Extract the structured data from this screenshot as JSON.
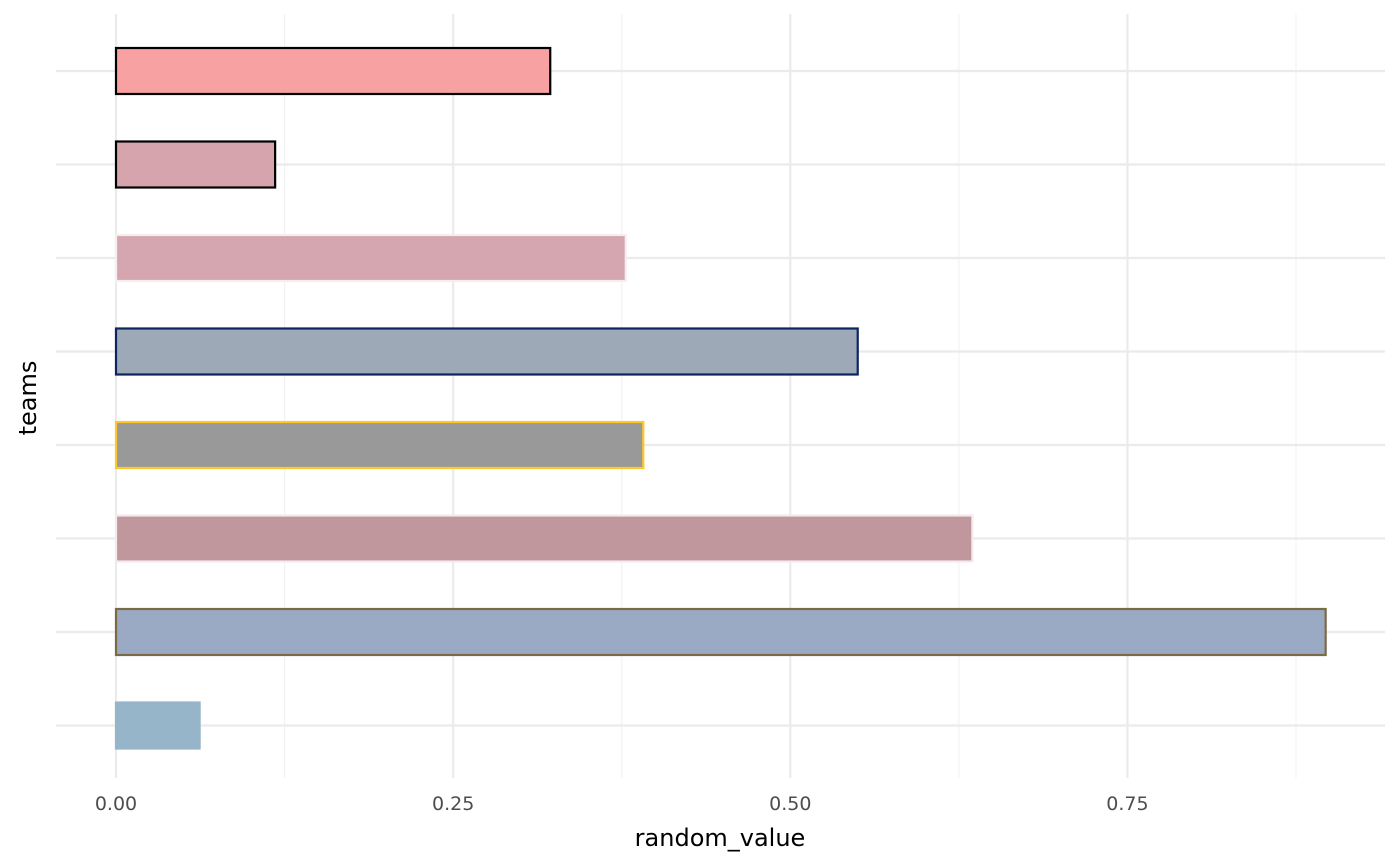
{
  "chart_data": {
    "type": "bar",
    "orientation": "horizontal",
    "xlabel": "random_value",
    "ylabel": "teams",
    "xlim": [
      -0.09,
      1.0
    ],
    "x_ticks": [
      0.0,
      0.25,
      0.5,
      0.75
    ],
    "x_tick_labels": [
      "0.00",
      "0.25",
      "0.50",
      "0.75"
    ],
    "x_minor_ticks": [
      0.125,
      0.375,
      0.625,
      0.875
    ],
    "grid": true,
    "legend": "none",
    "bars": [
      {
        "value": 0.322,
        "fill": "#F7A1A3",
        "outline": "#000000"
      },
      {
        "value": 0.118,
        "fill": "#D6A4AD",
        "outline": "#000000"
      },
      {
        "value": 0.378,
        "fill": "#D5A6B0",
        "outline": "#F4EEF0"
      },
      {
        "value": 0.55,
        "fill": "#9EA9B7",
        "outline": "#0C2461"
      },
      {
        "value": 0.391,
        "fill": "#999999",
        "outline": "#FFC72C"
      },
      {
        "value": 0.635,
        "fill": "#C0979C",
        "outline": "#F3EAEC"
      },
      {
        "value": 0.897,
        "fill": "#9AA9C4",
        "outline": "#7B6B45"
      },
      {
        "value": 0.062,
        "fill": "#97B5C9",
        "outline": "#97B5C9"
      }
    ]
  }
}
